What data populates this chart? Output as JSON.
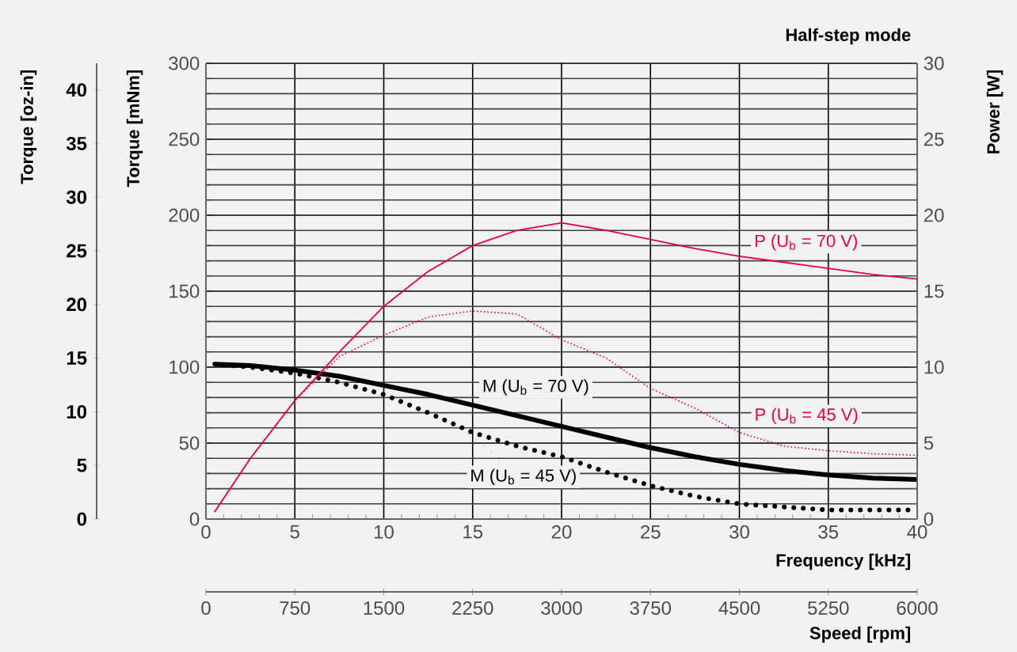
{
  "chart_data": {
    "type": "line",
    "subtitle": "Half-step mode",
    "xlabel": "Frequency [kHz]",
    "ylabel": "Torque [mNm]",
    "y2label": "Power [W]",
    "y3label": "Torque [oz-in]",
    "x2label": "Speed [rpm]",
    "xlim": [
      0,
      40
    ],
    "xticks": [
      0,
      5,
      10,
      15,
      20,
      25,
      30,
      35,
      40
    ],
    "ylim": [
      0,
      300
    ],
    "yticks": [
      0,
      50,
      100,
      150,
      200,
      250,
      300
    ],
    "y2lim": [
      0,
      30
    ],
    "y2ticks": [
      0,
      5,
      10,
      15,
      20,
      25,
      30
    ],
    "y3lim": [
      0,
      42.48
    ],
    "y3ticks": [
      0,
      5,
      10,
      15,
      20,
      25,
      30,
      35,
      40
    ],
    "x2lim": [
      0,
      6000
    ],
    "x2ticks": [
      0,
      750,
      1500,
      2250,
      3000,
      3750,
      4500,
      5250,
      6000
    ],
    "grid": true,
    "x": [
      0.5,
      2.5,
      5,
      7.5,
      10,
      12.5,
      15,
      17.5,
      20,
      22.5,
      25,
      27.5,
      30,
      32.5,
      35,
      37.5,
      40
    ],
    "series": [
      {
        "name": "M (U$_{b}$ = 70 V)",
        "color": "#000000",
        "line_style": "solid",
        "values": [
          102,
          101,
          98,
          94,
          88,
          82,
          75,
          68,
          61,
          54,
          47,
          41,
          36,
          32,
          29,
          27,
          26
        ]
      },
      {
        "name": "M (U$_{b}$ = 45 V)",
        "color": "#000000",
        "line_style": "dotted",
        "values": [
          102,
          100,
          96,
          90,
          82,
          70,
          57,
          48,
          41,
          31,
          22,
          15,
          10,
          8,
          6,
          6,
          6
        ]
      },
      {
        "name": "P (U$_{b}$ = 70 V)",
        "color": "#e4003a",
        "line_style": "solid",
        "axis": "y2",
        "values": [
          0.5,
          4,
          7.8,
          11,
          14,
          16.3,
          18,
          19,
          19.5,
          19,
          18.4,
          17.8,
          17.3,
          16.9,
          16.5,
          16.1,
          15.8
        ]
      },
      {
        "name": "P (U$_{b}$ = 45 V)",
        "color": "#e4003a",
        "line_style": "dotted",
        "axis": "y2",
        "values": [
          0.5,
          4,
          7.8,
          10.7,
          12.1,
          13.3,
          13.7,
          13.5,
          11.8,
          10.6,
          8.6,
          7.3,
          5.7,
          4.8,
          4.5,
          4.3,
          4.2
        ]
      }
    ]
  }
}
